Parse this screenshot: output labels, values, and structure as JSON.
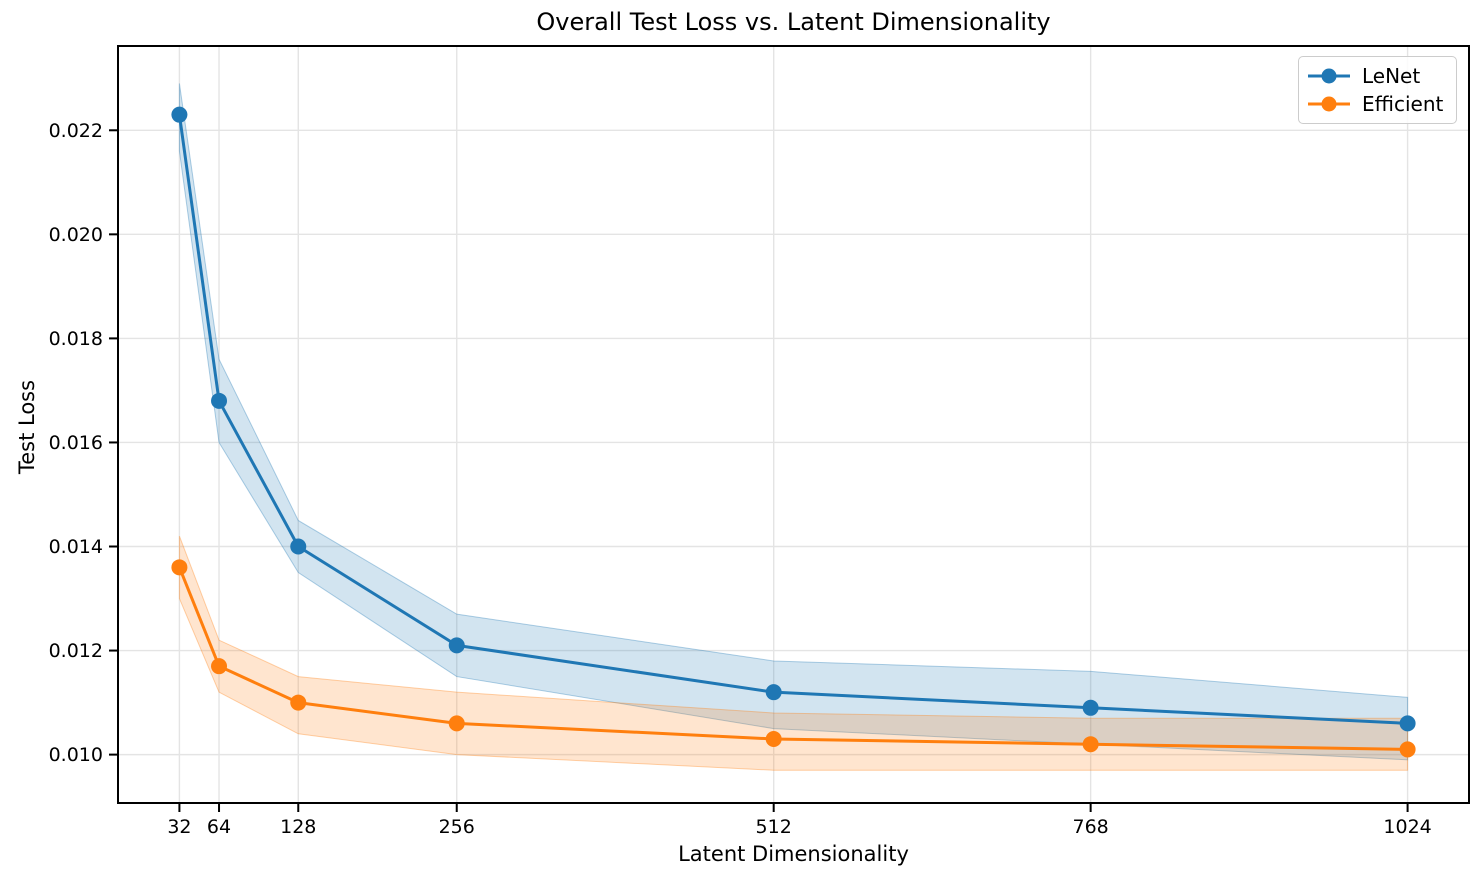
{
  "chart_data": {
    "type": "line",
    "title": "Overall Test Loss vs. Latent Dimensionality",
    "xlabel": "Latent Dimensionality",
    "ylabel": "Test Loss",
    "x": [
      32,
      64,
      128,
      256,
      512,
      768,
      1024
    ],
    "x_tick_labels": [
      "32",
      "64",
      "128",
      "256",
      "512",
      "768",
      "1024"
    ],
    "y_tick_values": [
      0.01,
      0.012,
      0.014,
      0.016,
      0.018,
      0.02,
      0.022
    ],
    "y_tick_labels": [
      "0.010",
      "0.012",
      "0.014",
      "0.016",
      "0.018",
      "0.020",
      "0.022"
    ],
    "xlim": [
      -17.6,
      1073.6
    ],
    "ylim": [
      0.00907,
      0.02362
    ],
    "grid": true,
    "legend_position": "upper right",
    "series": [
      {
        "name": "LeNet",
        "color": "#1f77b4",
        "values": [
          0.0223,
          0.0168,
          0.014,
          0.0121,
          0.0112,
          0.0109,
          0.0106
        ],
        "band_lower": [
          0.0216,
          0.016,
          0.0135,
          0.0115,
          0.0105,
          0.0102,
          0.0099
        ],
        "band_upper": [
          0.0229,
          0.0176,
          0.0145,
          0.0127,
          0.0118,
          0.0116,
          0.0111
        ]
      },
      {
        "name": "Efficient",
        "color": "#ff7f0e",
        "values": [
          0.0136,
          0.0117,
          0.011,
          0.0106,
          0.0103,
          0.0102,
          0.0101
        ],
        "band_lower": [
          0.013,
          0.0112,
          0.0104,
          0.01,
          0.0097,
          0.0097,
          0.0097
        ],
        "band_upper": [
          0.0142,
          0.0122,
          0.0115,
          0.0112,
          0.0108,
          0.0107,
          0.0107
        ]
      }
    ],
    "style": {
      "grid_color": "#e4e4e4",
      "spine_color": "#000000",
      "band_opacity": 0.2,
      "line_width": 3,
      "marker_radius": 8
    }
  }
}
